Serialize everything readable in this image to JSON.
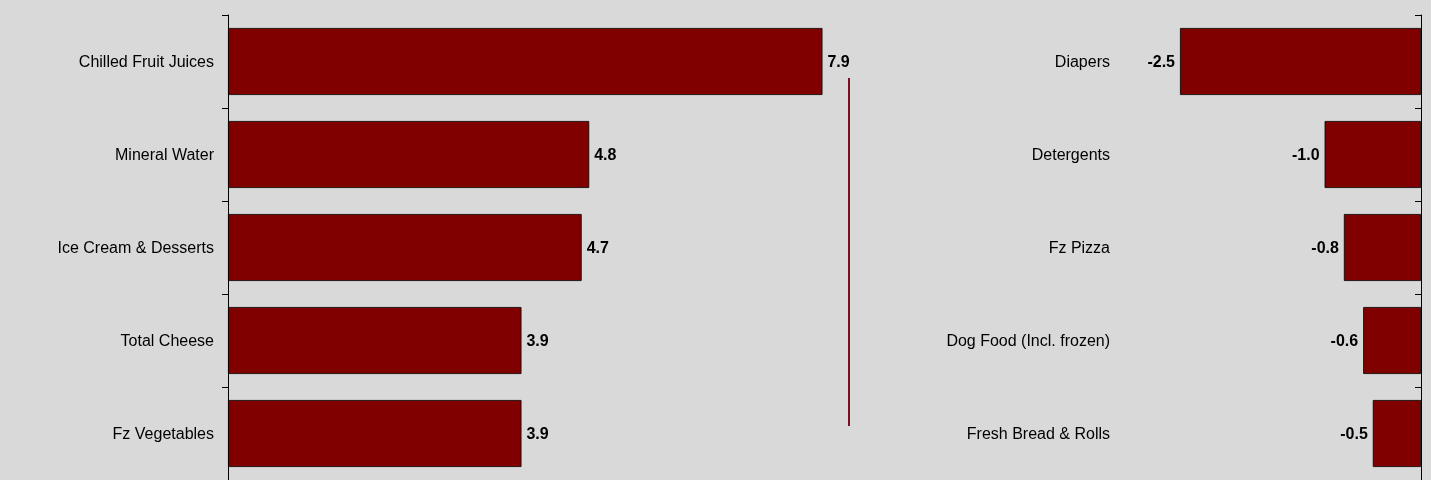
{
  "chart_data": [
    {
      "type": "bar",
      "orientation": "horizontal",
      "categories": [
        "Chilled Fruit Juices",
        "Mineral Water",
        "Ice Cream & Desserts",
        "Total Cheese",
        "Fz Vegetables"
      ],
      "values": [
        7.9,
        4.8,
        4.7,
        3.9,
        3.9
      ],
      "value_labels": [
        "7.9",
        "4.8",
        "4.7",
        "3.9",
        "3.9"
      ],
      "color": "#800000",
      "grid": false
    },
    {
      "type": "bar",
      "orientation": "horizontal",
      "categories": [
        "Diapers",
        "Detergents",
        "Fz Pizza",
        "Dog Food (Incl. frozen)",
        "Fresh Bread & Rolls"
      ],
      "values": [
        -2.5,
        -1.0,
        -0.8,
        -0.6,
        -0.5
      ],
      "value_labels": [
        "-2.5",
        "-1.0",
        "-0.8",
        "-0.6",
        "-0.5"
      ],
      "color": "#800000",
      "grid": false
    }
  ]
}
